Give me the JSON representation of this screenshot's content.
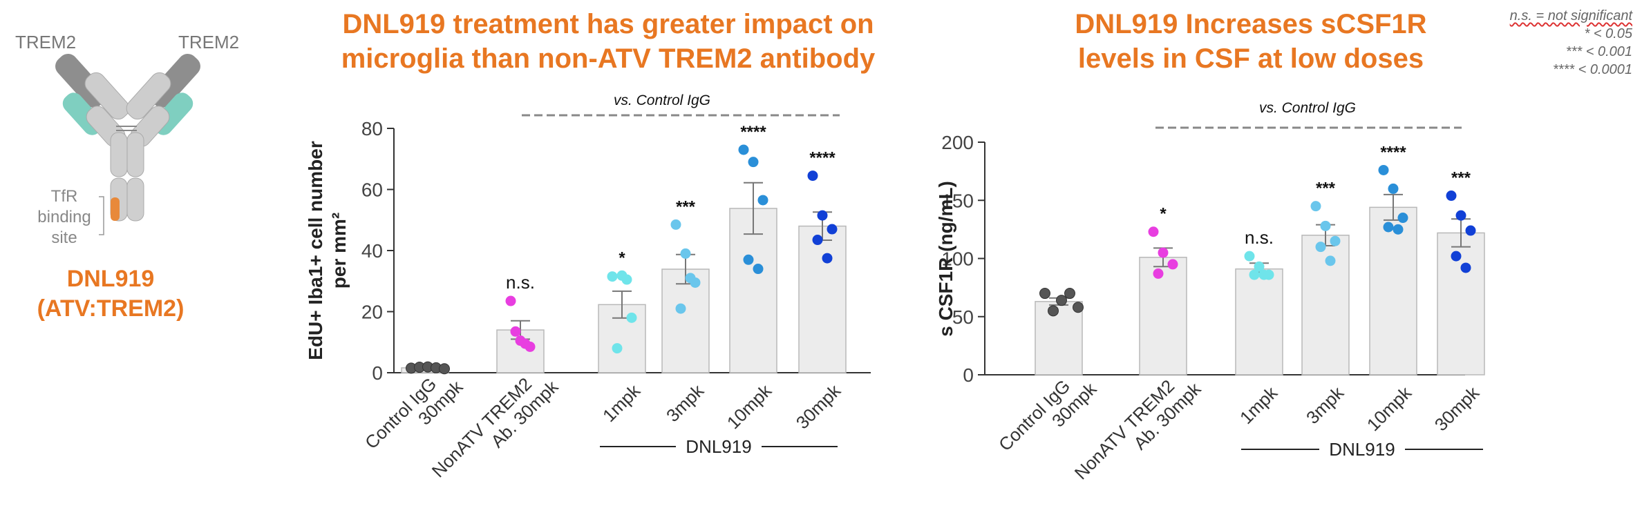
{
  "colors": {
    "title": "#E87722",
    "antibody_heavy": "#9a9a9a",
    "antibody_light": "#c9c9c9",
    "antibody_teal": "#7fcfc0",
    "antibody_tfr": "#E8893A",
    "bar_fill": "#ececec",
    "bar_stroke": "#b8b8b8",
    "axis": "#333333",
    "dashed": "#888888"
  },
  "diagram": {
    "arm_label_left": "TREM2",
    "arm_label_right": "TREM2",
    "tfr_label": [
      "TfR",
      "binding",
      "site"
    ],
    "drug_name": "DNL919",
    "drug_desc": "(ATV:TREM2)"
  },
  "legend": {
    "ns": "n.s. = not significant",
    "p05": "* < 0.05",
    "p001": "*** < 0.001",
    "p0001": "**** < 0.0001"
  },
  "chart_data": [
    {
      "type": "bar",
      "title": "DNL919 treatment has greater impact on microglia than non-ATV TREM2 antibody",
      "title_lines": [
        "DNL919 treatment has greater impact on",
        "microglia than non-ATV TREM2 antibody"
      ],
      "ylabel_lines": [
        "EdU+ Iba1+ cell number",
        "per mm²"
      ],
      "ylim": [
        0,
        80
      ],
      "yticks": [
        "0",
        "20",
        "40",
        "60",
        "80"
      ],
      "comparison_label": "vs. Control IgG",
      "group_label": "DNL919",
      "categories": [
        {
          "lines": [
            "Control IgG",
            "30mpk"
          ],
          "mean": 1.6,
          "sem": 0.2,
          "color": "#555555",
          "points": [
            1.5,
            1.8,
            1.9,
            1.6,
            1.3
          ],
          "sig": ""
        },
        {
          "lines": [
            "NonATV TREM2",
            "Ab. 30mpk"
          ],
          "mean": 14,
          "sem": 3,
          "color": "#E83EE0",
          "points": [
            23.5,
            10.5,
            8.5,
            13.5,
            9.5
          ],
          "sig": "n.s."
        },
        {
          "lines": [
            "1mpk"
          ],
          "mean": 22.3,
          "sem": 4.4,
          "color": "#6FE4EA",
          "points": [
            31.5,
            31.8,
            18,
            8,
            30.5
          ],
          "sig": "*"
        },
        {
          "lines": [
            "3mpk"
          ],
          "mean": 33.9,
          "sem": 4.8,
          "color": "#6AC6EC",
          "points": [
            48.5,
            39,
            29.5,
            21,
            31
          ],
          "sig": "***"
        },
        {
          "lines": [
            "10mpk"
          ],
          "mean": 53.8,
          "sem": 8.4,
          "color": "#2A8FD8",
          "points": [
            73,
            69,
            56.5,
            37,
            34
          ],
          "sig": "****"
        },
        {
          "lines": [
            "30mpk"
          ],
          "mean": 48,
          "sem": 4.6,
          "color": "#1140D6",
          "points": [
            64.5,
            51.5,
            47,
            43.5,
            37.5
          ],
          "sig": "****"
        }
      ]
    },
    {
      "type": "bar",
      "title": "DNL919 Increases sCSF1R levels in CSF at low doses",
      "title_lines": [
        "DNL919 Increases sCSF1R",
        "levels in CSF at low doses"
      ],
      "ylabel_lines": [
        "s CSF1R (ng/mL)"
      ],
      "ylim": [
        0,
        200
      ],
      "yticks": [
        "0",
        "50",
        "100",
        "150",
        "200"
      ],
      "comparison_label": "vs. Control IgG",
      "group_label": "DNL919",
      "categories": [
        {
          "lines": [
            "Control IgG",
            "30mpk"
          ],
          "mean": 63,
          "sem": 3,
          "color": "#555555",
          "points": [
            70,
            55,
            64,
            70,
            58
          ],
          "sig": ""
        },
        {
          "lines": [
            "NonATV TREM2",
            "Ab. 30mpk"
          ],
          "mean": 101,
          "sem": 8,
          "color": "#E83EE0",
          "points": [
            123,
            105,
            95,
            87
          ],
          "sig": "*"
        },
        {
          "lines": [
            "1mpk"
          ],
          "mean": 91,
          "sem": 5,
          "color": "#6FE4EA",
          "points": [
            102,
            93,
            86,
            86,
            86
          ],
          "sig": "n.s."
        },
        {
          "lines": [
            "3mpk"
          ],
          "mean": 120,
          "sem": 9,
          "color": "#6AC6EC",
          "points": [
            145,
            128,
            115,
            110,
            98
          ],
          "sig": "***"
        },
        {
          "lines": [
            "10mpk"
          ],
          "mean": 144,
          "sem": 11,
          "color": "#2A8FD8",
          "points": [
            176,
            160,
            135,
            127,
            125
          ],
          "sig": "****"
        },
        {
          "lines": [
            "30mpk"
          ],
          "mean": 122,
          "sem": 12,
          "color": "#1140D6",
          "points": [
            154,
            137,
            124,
            102,
            92
          ],
          "sig": "***"
        }
      ]
    }
  ]
}
